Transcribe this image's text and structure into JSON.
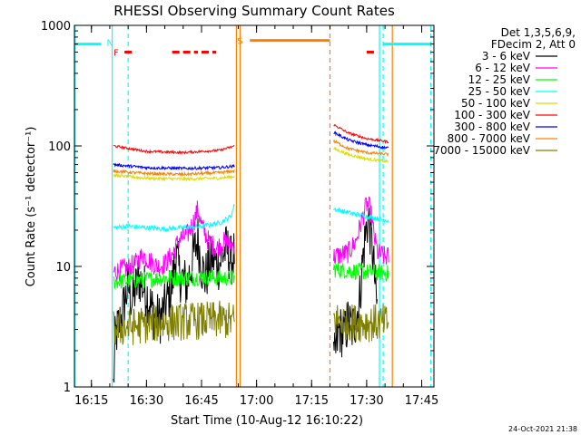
{
  "chart_data": {
    "type": "line",
    "title": "RHESSI Observing Summary Count Rates",
    "xlabel": "Start Time (10-Aug-12 16:10:22)",
    "ylabel": "Count Rate (s⁻¹ detector⁻¹)",
    "yscale": "log",
    "ylim": [
      1,
      1000
    ],
    "xlim": [
      "16:10:22",
      "17:48:20"
    ],
    "x_ticks": [
      "16:15",
      "16:30",
      "16:45",
      "17:00",
      "17:15",
      "17:30",
      "17:45"
    ],
    "y_ticks": [
      "1",
      "10",
      "100",
      "1000"
    ],
    "legend_header": [
      "Det 1,3,5,6,9,",
      "FDecim 2, Att 0"
    ],
    "legend_position": "right",
    "footer": "24-Oct-2021 21:38",
    "series": [
      {
        "name": "3 - 6 keV",
        "color": "#000000",
        "segments": [
          {
            "points": [
              [
                "16:21:00",
                1.0
              ],
              [
                "16:21:30",
                2.6
              ],
              [
                "16:23:00",
                3.6
              ],
              [
                "16:25:00",
                7.0
              ],
              [
                "16:26:00",
                5.2
              ],
              [
                "16:28:00",
                8.0
              ],
              [
                "16:30:00",
                6.0
              ],
              [
                "16:32:00",
                4.0
              ],
              [
                "16:33:30",
                3.6
              ],
              [
                "16:35:00",
                4.5
              ],
              [
                "16:37:00",
                7.0
              ],
              [
                "16:38:00",
                13.0
              ],
              [
                "16:39:00",
                8.5
              ],
              [
                "16:41:00",
                7.0
              ],
              [
                "16:43:00",
                13.0
              ],
              [
                "16:44:00",
                17.0
              ],
              [
                "16:45:00",
                10.0
              ],
              [
                "16:46:00",
                8.0
              ],
              [
                "16:48:00",
                12.0
              ],
              [
                "16:49:30",
                10.0
              ],
              [
                "16:51:00",
                13.0
              ],
              [
                "16:52:00",
                14.0
              ],
              [
                "16:53:00",
                11.0
              ],
              [
                "16:54:00",
                13.0
              ]
            ]
          },
          {
            "points": [
              [
                "17:21:00",
                1.5
              ],
              [
                "17:22:30",
                3.0
              ],
              [
                "17:24:00",
                2.7
              ],
              [
                "17:25:00",
                3.5
              ],
              [
                "17:26:00",
                3.0
              ],
              [
                "17:27:00",
                3.6
              ],
              [
                "17:28:00",
                5.0
              ],
              [
                "17:29:00",
                12.0
              ],
              [
                "17:30:00",
                22.0
              ],
              [
                "17:30:30",
                25.0
              ],
              [
                "17:31:30",
                15.0
              ],
              [
                "17:32:30",
                6.0
              ],
              [
                "17:33:00",
                4.0
              ]
            ]
          }
        ]
      },
      {
        "name": "6 - 12 keV",
        "color": "#ff00ff",
        "segments": [
          {
            "points": [
              [
                "16:21:00",
                9.0
              ],
              [
                "16:23:00",
                9.3
              ],
              [
                "16:25:00",
                9.8
              ],
              [
                "16:27:00",
                10.5
              ],
              [
                "16:29:00",
                12.5
              ],
              [
                "16:31:00",
                11.0
              ],
              [
                "16:33:00",
                10.0
              ],
              [
                "16:35:00",
                10.5
              ],
              [
                "16:37:00",
                12.5
              ],
              [
                "16:39:00",
                17.0
              ],
              [
                "16:41:00",
                18.0
              ],
              [
                "16:43:00",
                24.0
              ],
              [
                "16:44:00",
                30.0
              ],
              [
                "16:45:00",
                22.0
              ],
              [
                "16:47:00",
                16.0
              ],
              [
                "16:49:00",
                14.0
              ],
              [
                "16:51:00",
                16.0
              ],
              [
                "16:53:00",
                15.0
              ],
              [
                "16:54:00",
                15.5
              ]
            ]
          },
          {
            "points": [
              [
                "17:21:00",
                12.0
              ],
              [
                "17:23:00",
                12.5
              ],
              [
                "17:25:00",
                13.0
              ],
              [
                "17:27:00",
                16.0
              ],
              [
                "17:29:00",
                26.0
              ],
              [
                "17:30:00",
                33.0
              ],
              [
                "17:31:00",
                30.0
              ],
              [
                "17:32:00",
                18.0
              ],
              [
                "17:33:00",
                13.0
              ],
              [
                "17:35:00",
                12.0
              ],
              [
                "17:36:00",
                12.0
              ]
            ]
          }
        ]
      },
      {
        "name": "12 - 25 keV",
        "color": "#00ff00",
        "segments": [
          {
            "points": [
              [
                "16:21:00",
                7.5
              ],
              [
                "16:25:00",
                7.6
              ],
              [
                "16:30:00",
                7.8
              ],
              [
                "16:35:00",
                8.0
              ],
              [
                "16:40:00",
                8.0
              ],
              [
                "16:45:00",
                8.2
              ],
              [
                "16:50:00",
                8.0
              ],
              [
                "16:54:00",
                8.0
              ]
            ]
          },
          {
            "points": [
              [
                "17:21:00",
                9.5
              ],
              [
                "17:25:00",
                9.2
              ],
              [
                "17:30:00",
                9.0
              ],
              [
                "17:36:00",
                8.8
              ]
            ]
          }
        ]
      },
      {
        "name": "25 - 50 keV",
        "color": "#00ffff",
        "segments": [
          {
            "points": [
              [
                "16:21:00",
                21.0
              ],
              [
                "16:25:00",
                21.5
              ],
              [
                "16:30:00",
                21.0
              ],
              [
                "16:35:00",
                20.5
              ],
              [
                "16:40:00",
                21.0
              ],
              [
                "16:45:00",
                21.5
              ],
              [
                "16:50:00",
                23.0
              ],
              [
                "16:53:00",
                26.0
              ],
              [
                "16:54:00",
                33.0
              ]
            ]
          },
          {
            "points": [
              [
                "17:21:00",
                30.0
              ],
              [
                "17:25:00",
                28.0
              ],
              [
                "17:30:00",
                26.0
              ],
              [
                "17:36:00",
                24.0
              ]
            ]
          }
        ]
      },
      {
        "name": "50 - 100 keV",
        "color": "#dcdc00",
        "segments": [
          {
            "points": [
              [
                "16:21:00",
                57.0
              ],
              [
                "16:30:00",
                54.0
              ],
              [
                "16:40:00",
                53.0
              ],
              [
                "16:50:00",
                54.0
              ],
              [
                "16:54:00",
                56.0
              ]
            ]
          },
          {
            "points": [
              [
                "17:21:00",
                95.0
              ],
              [
                "17:25:00",
                85.0
              ],
              [
                "17:30:00",
                78.0
              ],
              [
                "17:36:00",
                74.0
              ]
            ]
          }
        ]
      },
      {
        "name": "100 - 300 keV",
        "color": "#ff0000",
        "segments": [
          {
            "points": [
              [
                "16:21:00",
                100.0
              ],
              [
                "16:30:00",
                90.0
              ],
              [
                "16:40:00",
                88.0
              ],
              [
                "16:50:00",
                92.0
              ],
              [
                "16:54:00",
                100.0
              ]
            ]
          },
          {
            "points": [
              [
                "17:21:00",
                150.0
              ],
              [
                "17:25:00",
                128.0
              ],
              [
                "17:30:00",
                115.0
              ],
              [
                "17:36:00",
                108.0
              ]
            ]
          }
        ]
      },
      {
        "name": "300 - 800 keV",
        "color": "#0000ff",
        "segments": [
          {
            "points": [
              [
                "16:21:00",
                70.0
              ],
              [
                "16:30:00",
                66.0
              ],
              [
                "16:40:00",
                65.0
              ],
              [
                "16:50:00",
                66.0
              ],
              [
                "16:54:00",
                68.0
              ]
            ]
          },
          {
            "points": [
              [
                "17:21:00",
                130.0
              ],
              [
                "17:25:00",
                112.0
              ],
              [
                "17:30:00",
                102.0
              ],
              [
                "17:36:00",
                96.0
              ]
            ]
          }
        ]
      },
      {
        "name": "800 - 7000 keV",
        "color": "#ff8000",
        "segments": [
          {
            "points": [
              [
                "16:21:00",
                62.0
              ],
              [
                "16:30:00",
                59.0
              ],
              [
                "16:40:00",
                58.0
              ],
              [
                "16:50:00",
                60.0
              ],
              [
                "16:54:00",
                62.0
              ]
            ]
          },
          {
            "points": [
              [
                "17:21:00",
                110.0
              ],
              [
                "17:25:00",
                95.0
              ],
              [
                "17:30:00",
                88.0
              ],
              [
                "17:36:00",
                85.0
              ]
            ]
          }
        ]
      },
      {
        "name": "7000 - 15000 keV",
        "color": "#808000",
        "segments": [
          {
            "points": [
              [
                "16:21:00",
                3.0
              ],
              [
                "16:30:00",
                3.3
              ],
              [
                "16:40:00",
                3.5
              ],
              [
                "16:50:00",
                3.6
              ],
              [
                "16:54:00",
                3.5
              ]
            ]
          },
          {
            "points": [
              [
                "17:21:00",
                3.6
              ],
              [
                "17:28:00",
                3.4
              ],
              [
                "17:36:00",
                3.4
              ]
            ]
          }
        ]
      }
    ],
    "flag_bars": [
      {
        "label": "N",
        "color": "#00ffff",
        "segments": [
          [
            "16:10:22",
            "16:17:40"
          ],
          [
            "17:34:30",
            "17:47:30"
          ]
        ],
        "level": 700
      },
      {
        "label": "S",
        "color": "#ff8000",
        "segments": [
          [
            "16:58:10",
            "17:20:00"
          ]
        ],
        "level": 750
      },
      {
        "label": "F",
        "color": "#ff0000",
        "segments": [
          [
            "16:24:00",
            "16:27:00"
          ],
          [
            "16:37:00",
            "16:44:00"
          ],
          [
            "16:45:00",
            "16:49:00"
          ],
          [
            "17:30:00",
            "17:33:00"
          ]
        ],
        "level": 600,
        "dashed": true
      }
    ],
    "vertical_lines": [
      {
        "time": "16:20:40",
        "color": "#00ffff",
        "style": "solid"
      },
      {
        "time": "16:25:00",
        "color": "#00ffff",
        "style": "dashed"
      },
      {
        "time": "16:54:30",
        "color": "#ff8000",
        "style": "solid"
      },
      {
        "time": "16:55:30",
        "color": "#ff8000",
        "style": "solid"
      },
      {
        "time": "17:20:00",
        "color": "#ff8000",
        "style": "dashed"
      },
      {
        "time": "17:33:30",
        "color": "#00ffff",
        "style": "solid"
      },
      {
        "time": "17:34:30",
        "color": "#00ffff",
        "style": "dashed"
      },
      {
        "time": "17:37:00",
        "color": "#ff8000",
        "style": "solid"
      },
      {
        "time": "17:47:30",
        "color": "#00ffff",
        "style": "dashed"
      },
      {
        "time": "16:10:30",
        "color": "#00ffff",
        "style": "solid"
      }
    ]
  }
}
